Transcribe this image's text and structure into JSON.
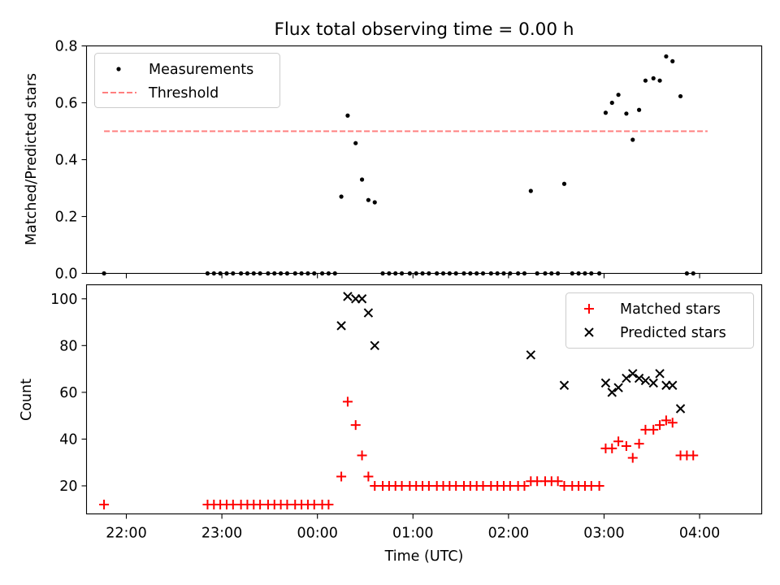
{
  "title": "Flux total observing time = 0.00 h",
  "colors": {
    "measurement": "#000000",
    "threshold": "#ff7f7f",
    "matched": "#ff0000",
    "predicted": "#000000"
  },
  "x_tick_labels": [
    "22:00",
    "23:00",
    "00:00",
    "01:00",
    "02:00",
    "03:00",
    "04:00"
  ],
  "xlabel": "Time (UTC)",
  "chart_data": [
    {
      "type": "scatter",
      "ylabel": "Matched/Predicted stars",
      "ylim": [
        0,
        0.8
      ],
      "yticks": [
        0.0,
        0.2,
        0.4,
        0.6,
        0.8
      ],
      "ytick_labels": [
        "0.0",
        "0.2",
        "0.4",
        "0.6",
        "0.8"
      ],
      "xlim_time": [
        "21:35",
        "04:39"
      ],
      "legend_position": "upper-left",
      "series": [
        {
          "name": "Measurements",
          "marker": "dot",
          "points": [
            [
              "21:46",
              0
            ],
            [
              "22:51",
              0
            ],
            [
              "22:55",
              0
            ],
            [
              "22:59",
              0
            ],
            [
              "23:03",
              0
            ],
            [
              "23:07",
              0
            ],
            [
              "23:12",
              0
            ],
            [
              "23:16",
              0
            ],
            [
              "23:20",
              0
            ],
            [
              "23:24",
              0
            ],
            [
              "23:29",
              0
            ],
            [
              "23:33",
              0
            ],
            [
              "23:37",
              0
            ],
            [
              "23:41",
              0
            ],
            [
              "23:46",
              0
            ],
            [
              "23:50",
              0
            ],
            [
              "23:54",
              0
            ],
            [
              "23:58",
              0
            ],
            [
              "00:03",
              0
            ],
            [
              "00:07",
              0
            ],
            [
              "00:11",
              0
            ],
            [
              "00:15",
              0.27
            ],
            [
              "00:19",
              0.555
            ],
            [
              "00:24",
              0.458
            ],
            [
              "00:28",
              0.33
            ],
            [
              "00:32",
              0.258
            ],
            [
              "00:36",
              0.25
            ],
            [
              "00:41",
              0
            ],
            [
              "00:45",
              0
            ],
            [
              "00:49",
              0
            ],
            [
              "00:53",
              0
            ],
            [
              "00:58",
              0
            ],
            [
              "01:02",
              0
            ],
            [
              "01:06",
              0
            ],
            [
              "01:10",
              0
            ],
            [
              "01:15",
              0
            ],
            [
              "01:19",
              0
            ],
            [
              "01:23",
              0
            ],
            [
              "01:27",
              0
            ],
            [
              "01:32",
              0
            ],
            [
              "01:36",
              0
            ],
            [
              "01:40",
              0
            ],
            [
              "01:44",
              0
            ],
            [
              "01:49",
              0
            ],
            [
              "01:53",
              0
            ],
            [
              "01:57",
              0
            ],
            [
              "02:01",
              0
            ],
            [
              "02:06",
              0
            ],
            [
              "02:10",
              0
            ],
            [
              "02:14",
              0.29
            ],
            [
              "02:18",
              0
            ],
            [
              "02:23",
              0
            ],
            [
              "02:27",
              0
            ],
            [
              "02:31",
              0
            ],
            [
              "02:35",
              0.315
            ],
            [
              "02:40",
              0
            ],
            [
              "02:44",
              0
            ],
            [
              "02:48",
              0
            ],
            [
              "02:52",
              0
            ],
            [
              "02:57",
              0
            ],
            [
              "03:01",
              0.565
            ],
            [
              "03:05",
              0.6
            ],
            [
              "03:09",
              0.628
            ],
            [
              "03:14",
              0.562
            ],
            [
              "03:18",
              0.47
            ],
            [
              "03:22",
              0.575
            ],
            [
              "03:26",
              0.678
            ],
            [
              "03:31",
              0.686
            ],
            [
              "03:35",
              0.678
            ],
            [
              "03:39",
              0.763
            ],
            [
              "03:43",
              0.746
            ],
            [
              "03:48",
              0.623
            ],
            [
              "03:52",
              0
            ],
            [
              "03:56",
              0
            ]
          ]
        },
        {
          "name": "Threshold",
          "marker": "dashed-line",
          "x": [
            "21:46",
            "04:05"
          ],
          "y": [
            0.5,
            0.5
          ]
        }
      ]
    },
    {
      "type": "scatter",
      "ylabel": "Count",
      "ylim": [
        8,
        106
      ],
      "yticks": [
        20,
        40,
        60,
        80,
        100
      ],
      "ytick_labels": [
        "20",
        "40",
        "60",
        "80",
        "100"
      ],
      "xlim_time": [
        "21:35",
        "04:39"
      ],
      "legend_position": "upper-right",
      "series": [
        {
          "name": "Matched stars",
          "marker": "plus",
          "points": [
            [
              "21:46",
              12
            ],
            [
              "22:51",
              12
            ],
            [
              "22:55",
              12
            ],
            [
              "22:59",
              12
            ],
            [
              "23:03",
              12
            ],
            [
              "23:07",
              12
            ],
            [
              "23:12",
              12
            ],
            [
              "23:16",
              12
            ],
            [
              "23:20",
              12
            ],
            [
              "23:24",
              12
            ],
            [
              "23:29",
              12
            ],
            [
              "23:33",
              12
            ],
            [
              "23:37",
              12
            ],
            [
              "23:41",
              12
            ],
            [
              "23:46",
              12
            ],
            [
              "23:50",
              12
            ],
            [
              "23:54",
              12
            ],
            [
              "23:58",
              12
            ],
            [
              "00:03",
              12
            ],
            [
              "00:07",
              12
            ],
            [
              "00:15",
              24
            ],
            [
              "00:19",
              56
            ],
            [
              "00:24",
              46
            ],
            [
              "00:28",
              33
            ],
            [
              "00:32",
              24
            ],
            [
              "00:36",
              20
            ],
            [
              "00:41",
              20
            ],
            [
              "00:45",
              20
            ],
            [
              "00:49",
              20
            ],
            [
              "00:53",
              20
            ],
            [
              "00:58",
              20
            ],
            [
              "01:02",
              20
            ],
            [
              "01:06",
              20
            ],
            [
              "01:10",
              20
            ],
            [
              "01:15",
              20
            ],
            [
              "01:19",
              20
            ],
            [
              "01:23",
              20
            ],
            [
              "01:27",
              20
            ],
            [
              "01:32",
              20
            ],
            [
              "01:36",
              20
            ],
            [
              "01:40",
              20
            ],
            [
              "01:44",
              20
            ],
            [
              "01:49",
              20
            ],
            [
              "01:53",
              20
            ],
            [
              "01:57",
              20
            ],
            [
              "02:01",
              20
            ],
            [
              "02:06",
              20
            ],
            [
              "02:10",
              20
            ],
            [
              "02:14",
              22
            ],
            [
              "02:18",
              22
            ],
            [
              "02:23",
              22
            ],
            [
              "02:27",
              22
            ],
            [
              "02:31",
              22
            ],
            [
              "02:35",
              20
            ],
            [
              "02:40",
              20
            ],
            [
              "02:44",
              20
            ],
            [
              "02:48",
              20
            ],
            [
              "02:52",
              20
            ],
            [
              "02:57",
              20
            ],
            [
              "03:01",
              36
            ],
            [
              "03:05",
              36
            ],
            [
              "03:09",
              39
            ],
            [
              "03:14",
              37
            ],
            [
              "03:18",
              32
            ],
            [
              "03:22",
              38
            ],
            [
              "03:26",
              44
            ],
            [
              "03:31",
              44
            ],
            [
              "03:35",
              46
            ],
            [
              "03:39",
              48
            ],
            [
              "03:43",
              47
            ],
            [
              "03:48",
              33
            ],
            [
              "03:52",
              33
            ],
            [
              "03:56",
              33
            ]
          ]
        },
        {
          "name": "Predicted stars",
          "marker": "x",
          "points": [
            [
              "00:15",
              88.5
            ],
            [
              "00:19",
              101
            ],
            [
              "00:24",
              100
            ],
            [
              "00:28",
              100
            ],
            [
              "00:32",
              94
            ],
            [
              "00:36",
              80
            ],
            [
              "02:14",
              76
            ],
            [
              "02:35",
              63
            ],
            [
              "03:01",
              64
            ],
            [
              "03:05",
              60
            ],
            [
              "03:09",
              62
            ],
            [
              "03:14",
              66
            ],
            [
              "03:18",
              68
            ],
            [
              "03:22",
              66
            ],
            [
              "03:26",
              65
            ],
            [
              "03:31",
              64
            ],
            [
              "03:35",
              68
            ],
            [
              "03:39",
              63
            ],
            [
              "03:43",
              63
            ],
            [
              "03:48",
              53
            ]
          ]
        }
      ]
    }
  ]
}
